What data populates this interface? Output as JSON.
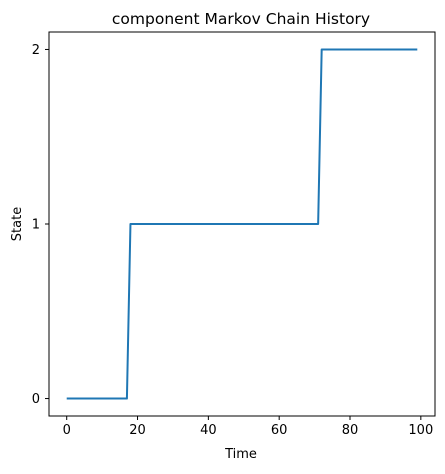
{
  "chart_data": {
    "type": "line",
    "title": "component Markov Chain History",
    "xlabel": "Time",
    "ylabel": "State",
    "xlim": [
      -5,
      104
    ],
    "ylim": [
      2.1,
      -0.1
    ],
    "y_inverted": true,
    "xticks": [
      0,
      20,
      40,
      60,
      80,
      100
    ],
    "yticks": [
      0,
      1,
      2
    ],
    "grid": false,
    "series": [
      {
        "color": "#1f77b4",
        "x": [
          0,
          17,
          18,
          71,
          72,
          99
        ],
        "y": [
          0,
          0,
          1,
          1,
          2,
          2
        ]
      }
    ]
  }
}
